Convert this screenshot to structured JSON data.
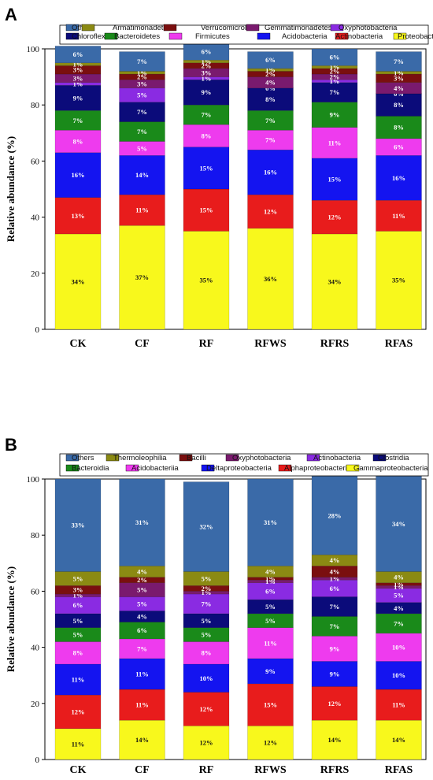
{
  "colors": {
    "Others": "#3a6aa8",
    "Armatimonadetes": "#8b8a13",
    "Verrucomicrobia": "#7a0f0f",
    "Gemmatimonadetes": "#7a1a6e",
    "Oxyphotobacteria": "#8a2be2",
    "Chloroflexi": "#0b0b7a",
    "Bacteroidetes": "#1a8a1a",
    "Firmicutes": "#ee3bee",
    "Acidobacteria": "#1414f0",
    "Actinobacteria": "#e81c1c",
    "Proteobacteria": "#f8f81c",
    "Thermoleophilia": "#8b8a13",
    "Bacilli": "#7a0f0f",
    "Actinobacteria_B": "#8a2be2",
    "Clostridia": "#0b0b7a",
    "Bacteroidia": "#1a8a1a",
    "Acidobacteriia": "#ee3bee",
    "Deltaproteobacteria": "#1414f0",
    "Alphaproteobacteria": "#e81c1c",
    "Gammaproteobacteria": "#f8f81c",
    "Oxyphotobacteria_B": "#7a1a6e"
  },
  "chart_data": [
    {
      "panel": "A",
      "type": "bar",
      "stacked": true,
      "ylabel": "Relative abundance (%)",
      "ylim": [
        0,
        100
      ],
      "yticks": [
        0,
        20,
        40,
        60,
        80,
        100
      ],
      "categories": [
        "CK",
        "CF",
        "RF",
        "RFWS",
        "RFRS",
        "RFAS"
      ],
      "legend": [
        [
          "Others",
          "Armatimonadetes",
          "Verrucomicrobia",
          "Gemmatimonadetes",
          "Oxyphotobacteria"
        ],
        [
          "Chloroflexi",
          "Bacteroidetes",
          "Firmicutes",
          "Acidobacteria",
          "Actinobacteria",
          "Proteobacteria"
        ]
      ],
      "series": [
        {
          "name": "Proteobacteria",
          "color_key": "Proteobacteria",
          "values": [
            34,
            37,
            35,
            36,
            34,
            35
          ],
          "labels": [
            "34%",
            "37%",
            "35%",
            "36%",
            "34%",
            "35%"
          ],
          "label_color": "#111111"
        },
        {
          "name": "Actinobacteria",
          "color_key": "Actinobacteria",
          "values": [
            13,
            11,
            15,
            12,
            12,
            11
          ],
          "labels": [
            "13%",
            "11%",
            "15%",
            "12%",
            "12%",
            "11%"
          ],
          "label_color": "#ffffff"
        },
        {
          "name": "Acidobacteria",
          "color_key": "Acidobacteria",
          "values": [
            16,
            14,
            15,
            16,
            15,
            16
          ],
          "labels": [
            "16%",
            "14%",
            "15%",
            "16%",
            "15%",
            "16%"
          ],
          "label_color": "#ffffff"
        },
        {
          "name": "Firmicutes",
          "color_key": "Firmicutes",
          "values": [
            8,
            5,
            8,
            7,
            11,
            6
          ],
          "labels": [
            "8%",
            "5%",
            "8%",
            "7%",
            "11%",
            "6%"
          ],
          "label_color": "#ffffff"
        },
        {
          "name": "Bacteroidetes",
          "color_key": "Bacteroidetes",
          "values": [
            7,
            7,
            7,
            7,
            9,
            8
          ],
          "labels": [
            "7%",
            "7%",
            "7%",
            "7%",
            "9%",
            "8%"
          ],
          "label_color": "#ffffff"
        },
        {
          "name": "Chloroflexi",
          "color_key": "Chloroflexi",
          "values": [
            9,
            7,
            9,
            8,
            7,
            8
          ],
          "labels": [
            "9%",
            "7%",
            "9%",
            "8%",
            "7%",
            "8%"
          ],
          "label_color": "#ffffff"
        },
        {
          "name": "Oxyphotobacteria",
          "color_key": "Oxyphotobacteria",
          "values": [
            1,
            5,
            1,
            0,
            1,
            0
          ],
          "labels": [
            "1%",
            "5%",
            "1%",
            "0%",
            "1%",
            "0%"
          ],
          "label_color": "#ffffff"
        },
        {
          "name": "Gemmatimonadetes",
          "color_key": "Gemmatimonadetes",
          "values": [
            3,
            3,
            3,
            4,
            2,
            4
          ],
          "labels": [
            "3%",
            "3%",
            "3%",
            "4%",
            "2%",
            "4%"
          ],
          "label_color": "#ffffff"
        },
        {
          "name": "Verrucomicrobia",
          "color_key": "Verrucomicrobia",
          "values": [
            3,
            2,
            2,
            2,
            2,
            3
          ],
          "labels": [
            "3%",
            "2%",
            "2%",
            "2%",
            "2%",
            "3%"
          ],
          "label_color": "#ffffff"
        },
        {
          "name": "Armatimonadetes",
          "color_key": "Armatimonadetes",
          "values": [
            1,
            1,
            1,
            1,
            1,
            1
          ],
          "labels": [
            "1%",
            "1%",
            "1%",
            "1%",
            "1%",
            "1%"
          ],
          "label_color": "#ffffff"
        },
        {
          "name": "Others",
          "color_key": "Others",
          "values": [
            6,
            7,
            6,
            6,
            6,
            7
          ],
          "labels": [
            "6%",
            "7%",
            "6%",
            "6%",
            "6%",
            "7%"
          ],
          "label_color": "#ffffff"
        }
      ]
    },
    {
      "panel": "B",
      "type": "bar",
      "stacked": true,
      "ylabel": "Relative abundance (%)",
      "ylim": [
        0,
        100
      ],
      "yticks": [
        0,
        20,
        40,
        60,
        80,
        100
      ],
      "categories": [
        "CK",
        "CF",
        "RF",
        "RFWS",
        "RFRS",
        "RFAS"
      ],
      "legend": [
        [
          "Others",
          "Thermoleophilia",
          "Bacilli",
          "Oxyphotobacteria",
          "Actinobacteria",
          "Clostridia"
        ],
        [
          "Bacteroidia",
          "Acidobacteriia",
          "Deltaproteobacteria",
          "Alphaproteobacteria",
          "Gammaproteobacteria"
        ]
      ],
      "series": [
        {
          "name": "Gammaproteobacteria",
          "color_key": "Gammaproteobacteria",
          "values": [
            11,
            14,
            12,
            12,
            14,
            14
          ],
          "labels": [
            "11%",
            "14%",
            "12%",
            "12%",
            "14%",
            "14%"
          ],
          "label_color": "#111111"
        },
        {
          "name": "Alphaproteobacteria",
          "color_key": "Alphaproteobacteria",
          "values": [
            12,
            11,
            12,
            15,
            12,
            11
          ],
          "labels": [
            "12%",
            "11%",
            "12%",
            "15%",
            "12%",
            "11%"
          ],
          "label_color": "#ffffff"
        },
        {
          "name": "Deltaproteobacteria",
          "color_key": "Deltaproteobacteria",
          "values": [
            11,
            11,
            10,
            9,
            9,
            10
          ],
          "labels": [
            "11%",
            "11%",
            "10%",
            "9%",
            "9%",
            "10%"
          ],
          "label_color": "#ffffff"
        },
        {
          "name": "Acidobacteriia",
          "color_key": "Acidobacteriia",
          "values": [
            8,
            7,
            8,
            11,
            9,
            10
          ],
          "labels": [
            "8%",
            "7%",
            "8%",
            "11%",
            "9%",
            "10%"
          ],
          "label_color": "#ffffff"
        },
        {
          "name": "Bacteroidia",
          "color_key": "Bacteroidia",
          "values": [
            5,
            6,
            5,
            5,
            7,
            7
          ],
          "labels": [
            "5%",
            "6%",
            "5%",
            "5%",
            "7%",
            "7%"
          ],
          "label_color": "#ffffff"
        },
        {
          "name": "Clostridia",
          "color_key": "Clostridia",
          "values": [
            5,
            4,
            5,
            5,
            7,
            4
          ],
          "labels": [
            "5%",
            "4%",
            "5%",
            "5%",
            "7%",
            "4%"
          ],
          "label_color": "#ffffff"
        },
        {
          "name": "Actinobacteria",
          "color_key": "Actinobacteria_B",
          "values": [
            6,
            5,
            7,
            6,
            6,
            5
          ],
          "labels": [
            "6%",
            "5%",
            "7%",
            "6%",
            "6%",
            "5%"
          ],
          "label_color": "#ffffff"
        },
        {
          "name": "Oxyphotobacteria",
          "color_key": "Oxyphotobacteria_B",
          "values": [
            1,
            5,
            1,
            1,
            1,
            1
          ],
          "labels": [
            "1%",
            "5%",
            "1%",
            "1%",
            "1%",
            "1%"
          ],
          "label_color": "#ffffff"
        },
        {
          "name": "Bacilli",
          "color_key": "Bacilli",
          "values": [
            3,
            2,
            2,
            1,
            4,
            1
          ],
          "labels": [
            "3%",
            "2%",
            "2%",
            "1%",
            "4%",
            "1%"
          ],
          "label_color": "#ffffff"
        },
        {
          "name": "Thermoleophilia",
          "color_key": "Thermoleophilia",
          "values": [
            5,
            4,
            5,
            4,
            4,
            4
          ],
          "labels": [
            "5%",
            "4%",
            "5%",
            "4%",
            "4%",
            "4%"
          ],
          "label_color": "#ffffff"
        },
        {
          "name": "Others",
          "color_key": "Others",
          "values": [
            33,
            31,
            32,
            31,
            28,
            34
          ],
          "labels": [
            "33%",
            "31%",
            "32%",
            "31%",
            "28%",
            "34%"
          ],
          "label_color": "#ffffff"
        }
      ]
    }
  ]
}
